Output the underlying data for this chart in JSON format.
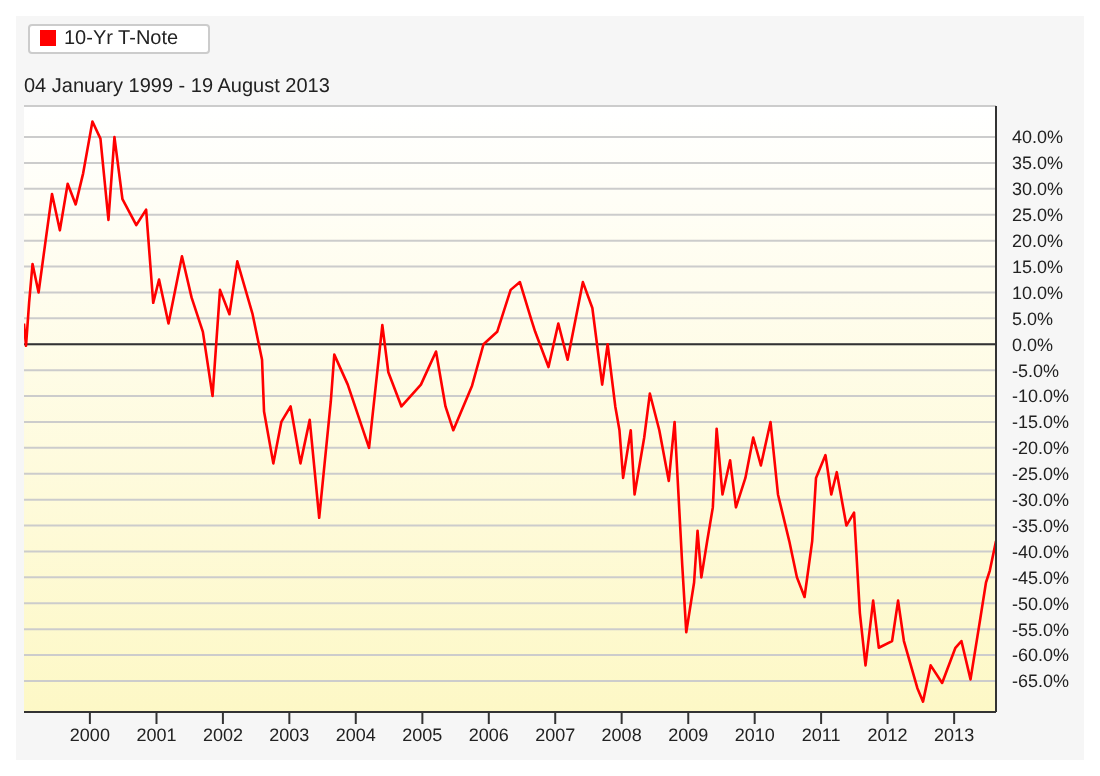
{
  "chart_data": {
    "type": "line",
    "subtitle": "04 January 1999 - 19 August 2013",
    "x": [
      "1999-01-04",
      "1999-01-15",
      "1999-02-01",
      "1999-02-20",
      "1999-03-25",
      "1999-05-05",
      "1999-06-07",
      "1999-07-20",
      "1999-09-01",
      "1999-10-15",
      "1999-11-25",
      "2000-01-15",
      "2000-02-28",
      "2000-04-12",
      "2000-05-15",
      "2000-06-28",
      "2000-09-12",
      "2000-11-05",
      "2000-12-14",
      "2001-01-15",
      "2001-03-08",
      "2001-05-21",
      "2001-07-13",
      "2001-09-13",
      "2001-11-05",
      "2001-12-16",
      "2002-02-06",
      "2002-03-21",
      "2002-06-13",
      "2002-08-04",
      "2002-08-15",
      "2002-10-05",
      "2002-11-18",
      "2003-01-08",
      "2003-03-03",
      "2003-04-23",
      "2003-06-14",
      "2003-08-17",
      "2003-09-05",
      "2003-11-18",
      "2004-03-14",
      "2004-05-26",
      "2004-06-28",
      "2004-09-08",
      "2004-12-24",
      "2005-03-17",
      "2005-05-08",
      "2005-06-20",
      "2005-10-01",
      "2005-12-03",
      "2006-02-16",
      "2006-05-01",
      "2006-06-21",
      "2006-08-23",
      "2006-09-13",
      "2006-11-25",
      "2007-01-18",
      "2007-03-10",
      "2007-06-02",
      "2007-07-24",
      "2007-09-16",
      "2007-10-16",
      "2007-11-27",
      "2007-12-20",
      "2008-01-09",
      "2008-02-20",
      "2008-03-12",
      "2008-05-04",
      "2008-06-04",
      "2008-07-26",
      "2008-09-16",
      "2008-10-18",
      "2008-11-29",
      "2008-12-21",
      "2009-02-02",
      "2009-02-21",
      "2009-03-14",
      "2009-04-15",
      "2009-05-16",
      "2009-06-06",
      "2009-07-08",
      "2009-08-19",
      "2009-09-20",
      "2009-11-11",
      "2009-12-24",
      "2010-02-04",
      "2010-03-29",
      "2010-05-09",
      "2010-07-10",
      "2010-08-21",
      "2010-10-02",
      "2010-11-13",
      "2010-12-04",
      "2011-01-25",
      "2011-02-26",
      "2011-03-28",
      "2011-05-20",
      "2011-07-01",
      "2011-08-02",
      "2011-09-02",
      "2011-10-14",
      "2011-11-14",
      "2012-01-26",
      "2012-02-28",
      "2012-03-31",
      "2012-06-13",
      "2012-07-14",
      "2012-08-25",
      "2012-10-27",
      "2013-01-08",
      "2013-02-10",
      "2013-04-01",
      "2013-05-25",
      "2013-06-25",
      "2013-07-16",
      "2013-08-19"
    ],
    "series": [
      {
        "name": "10-Yr T-Note",
        "color": "#ff0000",
        "values": [
          4,
          -0.3,
          8,
          15.5,
          10,
          20.6,
          29,
          22,
          31,
          27,
          33,
          43,
          39.7,
          24,
          40,
          28,
          23,
          26,
          8,
          12.5,
          4,
          17,
          9,
          2.4,
          -10,
          10.5,
          5.8,
          16,
          5.8,
          -3,
          -13,
          -23,
          -15,
          -12,
          -23,
          -14.6,
          -33.5,
          -11,
          -2,
          -7.8,
          -20,
          3.7,
          -5.4,
          -12,
          -7.8,
          -1.4,
          -12,
          -16.6,
          -8,
          0,
          2.4,
          10.5,
          12,
          4.7,
          2.4,
          -4.4,
          4,
          -3,
          12,
          7,
          -7.8,
          0,
          -12,
          -16.6,
          -25.8,
          -16.6,
          -29,
          -18,
          -9.5,
          -16.6,
          -26.4,
          -15,
          -42.7,
          -55.6,
          -46,
          -36,
          -45,
          -38,
          -31.5,
          -16.3,
          -29,
          -22.4,
          -31.5,
          -25.8,
          -18,
          -23.4,
          -15,
          -29,
          -38,
          -45,
          -48.8,
          -38,
          -25.8,
          -21.4,
          -29,
          -24.7,
          -35,
          -32.5,
          -51.9,
          -62,
          -49.5,
          -58.6,
          -57.3,
          -49.5,
          -57.3,
          -66.4,
          -69,
          -62,
          -65.4,
          -58.6,
          -57.3,
          -64.7,
          -52.9,
          -46,
          -43.7,
          -38
        ]
      }
    ],
    "xlim": [
      "1999-01-04",
      "2013-08-19"
    ],
    "xticks": [
      {
        "value": "2000-01-01",
        "label": "2000"
      },
      {
        "value": "2001-01-01",
        "label": "2001"
      },
      {
        "value": "2002-01-01",
        "label": "2002"
      },
      {
        "value": "2003-01-01",
        "label": "2003"
      },
      {
        "value": "2004-01-01",
        "label": "2004"
      },
      {
        "value": "2005-01-01",
        "label": "2005"
      },
      {
        "value": "2006-01-01",
        "label": "2006"
      },
      {
        "value": "2007-01-01",
        "label": "2007"
      },
      {
        "value": "2008-01-01",
        "label": "2008"
      },
      {
        "value": "2009-01-01",
        "label": "2009"
      },
      {
        "value": "2010-01-01",
        "label": "2010"
      },
      {
        "value": "2011-01-01",
        "label": "2011"
      },
      {
        "value": "2012-01-01",
        "label": "2012"
      },
      {
        "value": "2013-01-01",
        "label": "2013"
      }
    ],
    "ylim": [
      -71,
      46
    ],
    "yticks": [
      {
        "value": 40,
        "label": "40.0%"
      },
      {
        "value": 35,
        "label": "35.0%"
      },
      {
        "value": 30,
        "label": "30.0%"
      },
      {
        "value": 25,
        "label": "25.0%"
      },
      {
        "value": 20,
        "label": "20.0%"
      },
      {
        "value": 15,
        "label": "15.0%"
      },
      {
        "value": 10,
        "label": "10.0%"
      },
      {
        "value": 5,
        "label": "5.0%"
      },
      {
        "value": 0,
        "label": "0.0%"
      },
      {
        "value": -5,
        "label": "-5.0%"
      },
      {
        "value": -10,
        "label": "-10.0%"
      },
      {
        "value": -15,
        "label": "-15.0%"
      },
      {
        "value": -20,
        "label": "-20.0%"
      },
      {
        "value": -25,
        "label": "-25.0%"
      },
      {
        "value": -30,
        "label": "-30.0%"
      },
      {
        "value": -35,
        "label": "-35.0%"
      },
      {
        "value": -40,
        "label": "-40.0%"
      },
      {
        "value": -45,
        "label": "-45.0%"
      },
      {
        "value": -50,
        "label": "-50.0%"
      },
      {
        "value": -55,
        "label": "-55.0%"
      },
      {
        "value": -60,
        "label": "-60.0%"
      },
      {
        "value": -65,
        "label": "-65.0%"
      }
    ],
    "ref_lines": [
      {
        "axis": "y",
        "value": 0,
        "color": "#333333"
      }
    ],
    "grid": "y",
    "legend": "top left",
    "marker": "none",
    "line_style": "solid"
  }
}
